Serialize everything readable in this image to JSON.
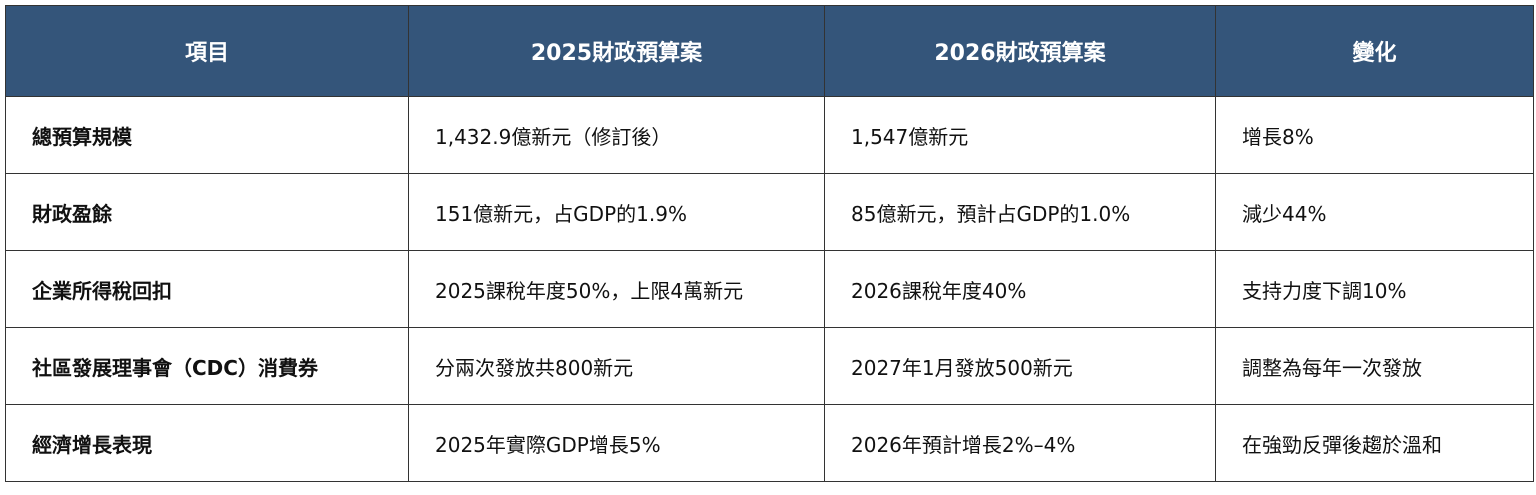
{
  "table": {
    "header": [
      "項目",
      "2025財政預算案",
      "2026財政預算案",
      "變化"
    ],
    "rows": [
      [
        "總預算規模",
        "1,432.9億新元（修訂後）",
        "1,547億新元",
        "增長8%"
      ],
      [
        "財政盈餘",
        "151億新元，占GDP的1.9%",
        "85億新元，預計占GDP的1.0%",
        "減少44%"
      ],
      [
        "企業所得稅回扣",
        "2025課稅年度50%，上限4萬新元",
        "2026課稅年度40%",
        "支持力度下調10%"
      ],
      [
        "社區發展理事會（CDC）消費券",
        "分兩次發放共800新元",
        "2027年1月發放500新元",
        "調整為每年一次發放"
      ],
      [
        "經濟增長表現",
        "2025年實際GDP增長5%",
        "2026年預計增長2%–4%",
        "在強勁反彈後趨於溫和"
      ]
    ]
  }
}
